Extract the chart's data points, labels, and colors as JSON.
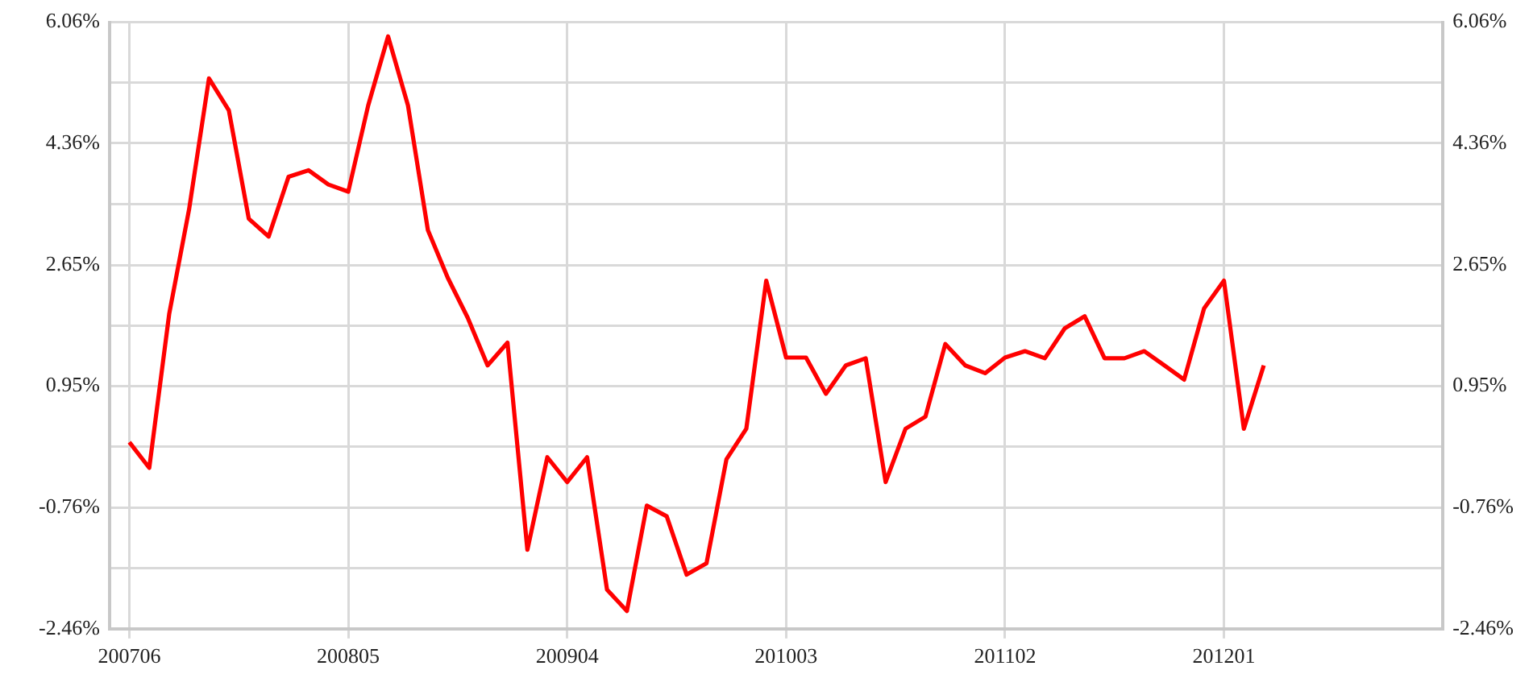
{
  "chart_data": {
    "type": "line",
    "categories": [
      null,
      "200706",
      null,
      null,
      null,
      null,
      null,
      null,
      null,
      null,
      null,
      null,
      "200805",
      null,
      null,
      null,
      null,
      null,
      null,
      null,
      null,
      null,
      null,
      "200904",
      null,
      null,
      null,
      null,
      null,
      null,
      null,
      null,
      null,
      null,
      "201003",
      null,
      null,
      null,
      null,
      null,
      null,
      null,
      null,
      null,
      null,
      "201102",
      null,
      null,
      null,
      null,
      null,
      null,
      null,
      null,
      null,
      null,
      "201201",
      null,
      null,
      null,
      null,
      null,
      null,
      null,
      null,
      null,
      null,
      null
    ],
    "series": [
      {
        "color": "#ff0000",
        "values": [
          null,
          0.16,
          -0.2,
          1.96,
          3.43,
          5.27,
          4.82,
          3.3,
          3.05,
          3.89,
          3.98,
          3.78,
          3.68,
          4.89,
          5.86,
          4.89,
          3.14,
          2.47,
          1.91,
          1.24,
          1.56,
          -1.35,
          -0.05,
          -0.4,
          -0.05,
          -1.91,
          -2.21,
          -0.73,
          -0.88,
          -1.7,
          -1.54,
          -0.08,
          0.35,
          2.43,
          1.35,
          1.35,
          0.84,
          1.24,
          1.34,
          -0.4,
          0.35,
          0.52,
          1.54,
          1.24,
          1.13,
          1.35,
          1.44,
          1.34,
          1.76,
          1.93,
          1.34,
          1.34,
          1.44,
          1.24,
          1.04,
          2.04,
          2.43,
          0.35,
          1.24,
          null,
          null,
          null,
          null,
          null,
          null,
          null,
          null,
          null
        ]
      }
    ],
    "ylim": [
      -2.46,
      6.06
    ],
    "yticks": [
      {
        "value": -2.46,
        "label": "-2.46%"
      },
      {
        "value": -1.61,
        "label": null
      },
      {
        "value": -0.76,
        "label": "-0.76%"
      },
      {
        "value": 0.1,
        "label": null
      },
      {
        "value": 0.95,
        "label": "0.95%"
      },
      {
        "value": 1.8,
        "label": null
      },
      {
        "value": 2.65,
        "label": "2.65%"
      },
      {
        "value": 3.5,
        "label": null
      },
      {
        "value": 4.36,
        "label": "4.36%"
      },
      {
        "value": 5.21,
        "label": null
      },
      {
        "value": 6.06,
        "label": "6.06%"
      }
    ],
    "y2lim": [
      -2.46,
      6.06
    ],
    "y2ticks": [
      {
        "value": -2.46,
        "label": "-2.46%"
      },
      {
        "value": -1.61,
        "label": null
      },
      {
        "value": -0.76,
        "label": "-0.76%"
      },
      {
        "value": 0.1,
        "label": null
      },
      {
        "value": 0.95,
        "label": "0.95%"
      },
      {
        "value": 1.8,
        "label": null
      },
      {
        "value": 2.65,
        "label": "2.65%"
      },
      {
        "value": 3.5,
        "label": null
      },
      {
        "value": 4.36,
        "label": "4.36%"
      },
      {
        "value": 5.21,
        "label": null
      },
      {
        "value": 6.06,
        "label": "6.06%"
      }
    ],
    "grid": true,
    "marker": "none",
    "line_style": "solid"
  }
}
